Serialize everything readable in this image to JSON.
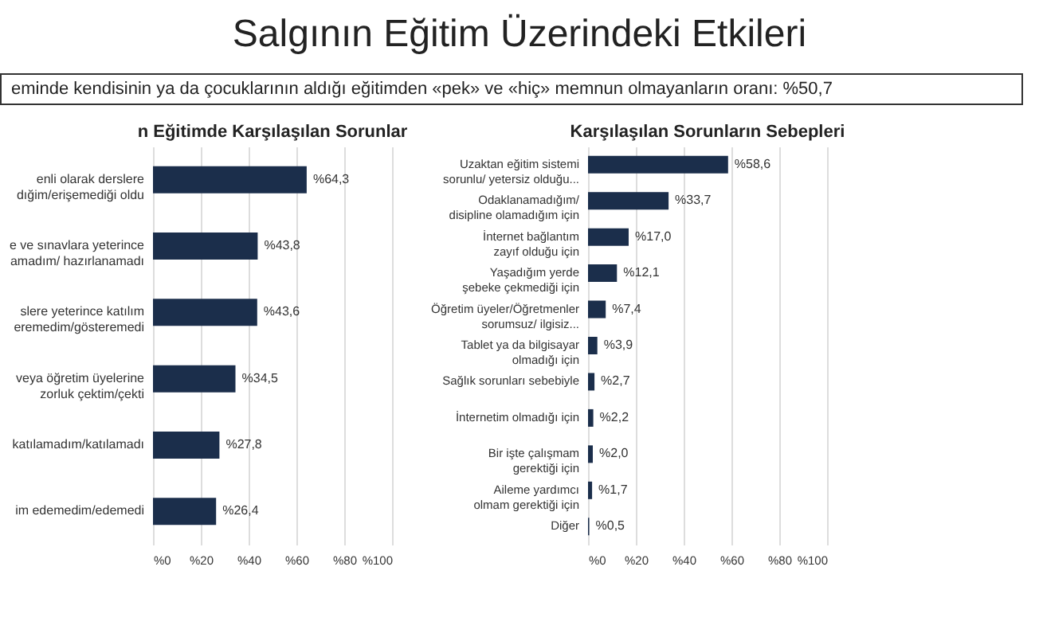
{
  "chart_data": [
    {
      "type": "other",
      "title": "Salgının Eğitim Üzerindeki Etkileri",
      "subtitle": "eminde kendisinin ya da çocuklarının aldığı eğitimden «pek» ve «hiç» memnun olmayanların oranı: %50,7"
    },
    {
      "type": "bar",
      "orientation": "horizontal",
      "title": "n Eğitimde Karşılaşılan Sorunlar",
      "categories": [
        "enli olarak derslere dığim/erişemediği oldu",
        "e ve sınavlara yeterince amadım/ hazırlanamadı",
        "slere yeterince katılım eremedim/gösteremedi",
        "veya öğretim üyelerine zorluk çektim/çekti",
        "katılamadım/katılamadı",
        "im edemedim/edemedi"
      ],
      "values": [
        64.3,
        43.8,
        43.6,
        34.5,
        27.8,
        26.4
      ],
      "value_labels": [
        "%64,3",
        "%43,8",
        "%43,6",
        "%34,5",
        "%27,8",
        "%26,4"
      ],
      "color": "#1b2e4b",
      "xlim": [
        0,
        100
      ],
      "xticks": [
        {
          "value": 0,
          "label": "%0"
        },
        {
          "value": 20,
          "label": "%20"
        },
        {
          "value": 40,
          "label": "%40"
        },
        {
          "value": 60,
          "label": "%60"
        },
        {
          "value": 80,
          "label": "%80"
        },
        {
          "value": 100,
          "label": "%100"
        }
      ],
      "grid": "x"
    },
    {
      "type": "bar",
      "orientation": "horizontal",
      "title": "Karşılaşılan Sorunların Sebepleri",
      "categories": [
        "Uzaktan eğitim sistemi sorunlu/ yetersiz olduğu...",
        "Odaklanamadığım/ disipline olamadığım için",
        "İnternet bağlantım zayıf olduğu için",
        "Yaşadığım yerde şebeke çekmediği için",
        "Öğretim üyeler/Öğretmenler sorumsuz/ ilgisiz...",
        "Tablet ya da bilgisayar olmadığı için",
        "Sağlık sorunları sebebiyle",
        "İnternetim olmadığı için",
        "Bir işte çalışmam gerektiği için",
        "Aileme yardımcı olmam gerektiği için",
        "Diğer"
      ],
      "values": [
        58.6,
        33.7,
        17.0,
        12.1,
        7.4,
        3.9,
        2.7,
        2.2,
        2.0,
        1.7,
        0.5
      ],
      "value_labels": [
        "%58,6",
        "%33,7",
        "%17,0",
        "%12,1",
        "%7,4",
        "%3,9",
        "%2,7",
        "%2,2",
        "%2,0",
        "%1,7",
        "%0,5"
      ],
      "color": "#1b2e4b",
      "xlim": [
        0,
        100
      ],
      "xticks": [
        {
          "value": 0,
          "label": "%0"
        },
        {
          "value": 20,
          "label": "%20"
        },
        {
          "value": 40,
          "label": "%40"
        },
        {
          "value": 60,
          "label": "%60"
        },
        {
          "value": 80,
          "label": "%80"
        },
        {
          "value": 100,
          "label": "%100"
        }
      ],
      "grid": "x"
    }
  ]
}
